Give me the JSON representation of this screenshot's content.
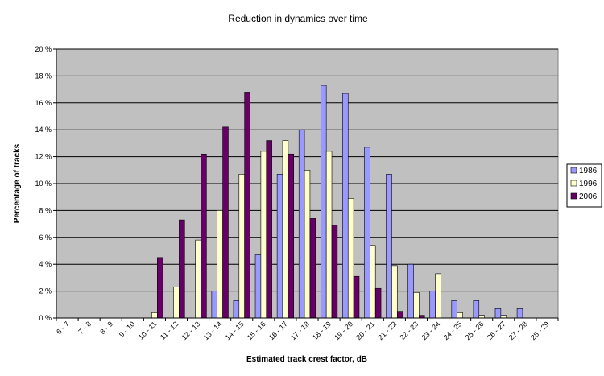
{
  "chart_data": {
    "type": "bar",
    "title": "Reduction in dynamics over time",
    "xlabel": "Estimated track crest factor, dB",
    "ylabel": "Percentage of tracks",
    "ylim": [
      0,
      20
    ],
    "y_ticks": [
      "0 %",
      "2 %",
      "4 %",
      "6 %",
      "8 %",
      "10 %",
      "12 %",
      "14 %",
      "16 %",
      "18 %",
      "20 %"
    ],
    "y_tick_values": [
      0,
      2,
      4,
      6,
      8,
      10,
      12,
      14,
      16,
      18,
      20
    ],
    "grid": true,
    "legend_position": "right",
    "categories": [
      "6 - 7",
      "7 - 8",
      "8 - 9",
      "9 - 10",
      "10 - 11",
      "11 - 12",
      "12 - 13",
      "13 - 14",
      "14 - 15",
      "15 - 16",
      "16 - 17",
      "17 - 18",
      "18 - 19",
      "19 - 20",
      "20 - 21",
      "21 - 22",
      "22 - 23",
      "23 - 24",
      "24 - 25",
      "25 - 26",
      "26 - 27",
      "27 - 28",
      "28 - 29"
    ],
    "series": [
      {
        "name": "1986",
        "color": "#9999ff",
        "values": [
          0,
          0,
          0,
          0,
          0,
          0,
          0,
          2.0,
          1.3,
          4.7,
          10.7,
          14.0,
          17.3,
          16.7,
          12.7,
          10.7,
          4.0,
          2.0,
          1.3,
          1.3,
          0.7,
          0.7,
          0
        ]
      },
      {
        "name": "1996",
        "color": "#ffffcc",
        "values": [
          0,
          0,
          0,
          0,
          0.4,
          2.3,
          5.8,
          8.0,
          10.7,
          12.4,
          13.2,
          11.0,
          12.4,
          8.9,
          5.4,
          3.9,
          1.9,
          3.3,
          0.4,
          0.2,
          0.2,
          0,
          0
        ]
      },
      {
        "name": "2006",
        "color": "#660066",
        "values": [
          0,
          0,
          0,
          0,
          4.5,
          7.3,
          12.2,
          14.2,
          16.8,
          13.2,
          12.2,
          7.4,
          6.9,
          3.1,
          2.2,
          0.5,
          0.2,
          0,
          0,
          0,
          0,
          0,
          0
        ]
      }
    ]
  }
}
